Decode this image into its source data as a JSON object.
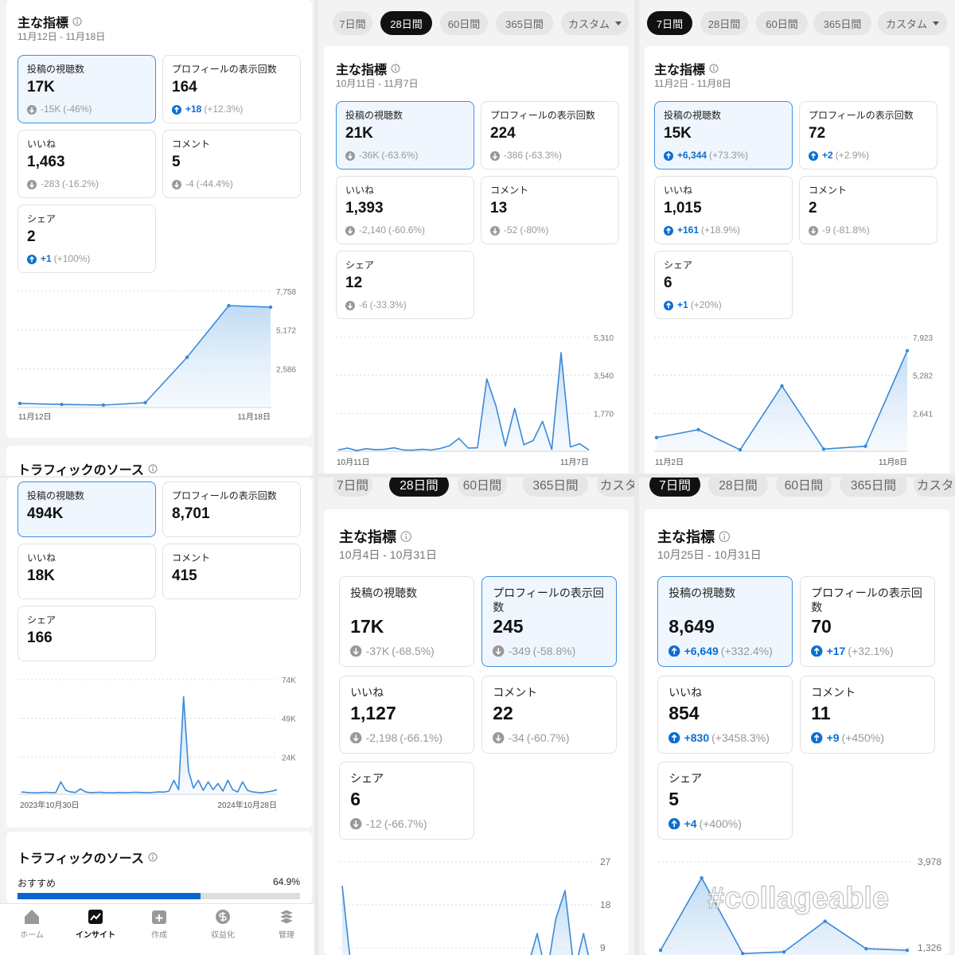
{
  "panels": [
    {
      "title": "主な指標",
      "date_range": "11月12日 - 11月18日",
      "selected_card": 0,
      "cards": [
        {
          "label": "投稿の視聴数",
          "value": "17K",
          "change": "-15K",
          "change_pct": "(-46%)",
          "trend": "down"
        },
        {
          "label": "プロフィールの表示回数",
          "value": "164",
          "change": "+18",
          "change_pct": "(+12.3%)",
          "trend": "up"
        },
        {
          "label": "いいね",
          "value": "1,463",
          "change": "-283",
          "change_pct": "(-16.2%)",
          "trend": "down"
        },
        {
          "label": "コメント",
          "value": "5",
          "change": "-4",
          "change_pct": "(-44.4%)",
          "trend": "down"
        },
        {
          "label": "シェア",
          "value": "2",
          "change": "+1",
          "change_pct": "(+100%)",
          "trend": "up"
        }
      ],
      "chart": {
        "type": "line",
        "values": [
          270,
          200,
          160,
          320,
          3350,
          6800,
          6700
        ],
        "ylim": [
          0,
          7758
        ],
        "yticks": [
          {
            "value": 2586,
            "label": "2,586"
          },
          {
            "value": 5172,
            "label": "5,172"
          },
          {
            "value": 7758,
            "label": "7,758"
          }
        ],
        "x_labels": [
          "11月12日",
          "11月18日"
        ]
      },
      "section_title": "トラフィックのソース"
    },
    {
      "tabs": {
        "items": [
          "7日間",
          "28日間",
          "60日間",
          "365日間",
          "カスタム"
        ],
        "selected": 1
      },
      "title": "主な指標",
      "date_range": "10月11日 - 11月7日",
      "selected_card": 0,
      "cards": [
        {
          "label": "投稿の視聴数",
          "value": "21K",
          "change": "-36K",
          "change_pct": "(-63.6%)",
          "trend": "down"
        },
        {
          "label": "プロフィールの表示回数",
          "value": "224",
          "change": "-386",
          "change_pct": "(-63.3%)",
          "trend": "down"
        },
        {
          "label": "いいね",
          "value": "1,393",
          "change": "-2,140",
          "change_pct": "(-60.6%)",
          "trend": "down"
        },
        {
          "label": "コメント",
          "value": "13",
          "change": "-52",
          "change_pct": "(-80%)",
          "trend": "down"
        },
        {
          "label": "シェア",
          "value": "12",
          "change": "-6",
          "change_pct": "(-33.3%)",
          "trend": "down"
        }
      ],
      "chart": {
        "type": "line",
        "values": [
          60,
          150,
          30,
          120,
          70,
          90,
          160,
          60,
          50,
          90,
          60,
          130,
          260,
          600,
          150,
          160,
          3380,
          2100,
          250,
          2000,
          300,
          500,
          1400,
          80,
          4600,
          200,
          350,
          60
        ],
        "ylim": [
          0,
          5310
        ],
        "yticks": [
          {
            "value": 1770,
            "label": "1,770"
          },
          {
            "value": 3540,
            "label": "3,540"
          },
          {
            "value": 5310,
            "label": "5,310"
          }
        ],
        "x_labels": [
          "10月11日",
          "11月7日"
        ]
      }
    },
    {
      "tabs": {
        "items": [
          "7日間",
          "28日間",
          "60日間",
          "365日間",
          "カスタム"
        ],
        "selected": 0
      },
      "title": "主な指標",
      "date_range": "11月2日 - 11月8日",
      "selected_card": 0,
      "cards": [
        {
          "label": "投稿の視聴数",
          "value": "15K",
          "change": "+6,344",
          "change_pct": "(+73.3%)",
          "trend": "up"
        },
        {
          "label": "プロフィールの表示回数",
          "value": "72",
          "change": "+2",
          "change_pct": "(+2.9%)",
          "trend": "up"
        },
        {
          "label": "いいね",
          "value": "1,015",
          "change": "+161",
          "change_pct": "(+18.9%)",
          "trend": "up"
        },
        {
          "label": "コメント",
          "value": "2",
          "change": "-9",
          "change_pct": "(-81.8%)",
          "trend": "down"
        },
        {
          "label": "シェア",
          "value": "6",
          "change": "+1",
          "change_pct": "(+20%)",
          "trend": "up"
        }
      ],
      "chart": {
        "type": "line",
        "values": [
          950,
          1500,
          100,
          4550,
          150,
          350,
          7000
        ],
        "ylim": [
          0,
          7923
        ],
        "yticks": [
          {
            "value": 2641,
            "label": "2,641"
          },
          {
            "value": 5282,
            "label": "5,282"
          },
          {
            "value": 7923,
            "label": "7,923"
          }
        ],
        "x_labels": [
          "11月2日",
          "11月8日"
        ]
      }
    },
    {
      "selected_card": 0,
      "cards": [
        {
          "label": "投稿の視聴数",
          "value": "494K"
        },
        {
          "label": "プロフィールの表示回数",
          "value": "8,701"
        },
        {
          "label": "いいね",
          "value": "18K"
        },
        {
          "label": "コメント",
          "value": "415"
        },
        {
          "label": "シェア",
          "value": "166"
        }
      ],
      "chart": {
        "type": "line",
        "values": [
          1500,
          1200,
          1000,
          900,
          1100,
          1300,
          1000,
          1200,
          8000,
          2500,
          1500,
          1200,
          3500,
          1500,
          1000,
          1200,
          1300,
          1100,
          1000,
          900,
          1200,
          1000,
          1100,
          1300,
          1200,
          1000,
          1100,
          1300,
          1500,
          1400,
          2000,
          9000,
          3000,
          63000,
          15000,
          4000,
          9000,
          2500,
          8000,
          3000,
          7000,
          2000,
          9000,
          3000,
          1500,
          8000,
          2500,
          1500,
          1200,
          1000,
          1500,
          2000,
          3000
        ],
        "ylim": [
          0,
          74000
        ],
        "yticks": [
          {
            "value": 24000,
            "label": "24K"
          },
          {
            "value": 49000,
            "label": "49K"
          },
          {
            "value": 74000,
            "label": "74K"
          }
        ],
        "x_labels": [
          "2023年10月30日",
          "2024年10月28日"
        ]
      },
      "traffic": {
        "title": "トラフィックのソース",
        "items": [
          {
            "label": "おすすめ",
            "value": 64.9,
            "value_label": "64.9%"
          }
        ]
      },
      "nav": {
        "items": [
          "ホーム",
          "インサイト",
          "作成",
          "収益化",
          "管理"
        ],
        "active": 1
      }
    },
    {
      "tabs": {
        "items": [
          "7日間",
          "28日間",
          "60日間",
          "365日間",
          "カスタム"
        ],
        "selected": 1
      },
      "title": "主な指標",
      "date_range": "10月4日 - 10月31日",
      "selected_card": 1,
      "cards": [
        {
          "label": "投稿の視聴数",
          "value": "17K",
          "change": "-37K",
          "change_pct": "(-68.5%)",
          "trend": "down"
        },
        {
          "label": "プロフィールの表示回数",
          "value": "245",
          "change": "-349",
          "change_pct": "(-58.8%)",
          "trend": "down"
        },
        {
          "label": "いいね",
          "value": "1,127",
          "change": "-2,198",
          "change_pct": "(-66.1%)",
          "trend": "down"
        },
        {
          "label": "コメント",
          "value": "22",
          "change": "-34",
          "change_pct": "(-60.7%)",
          "trend": "down"
        },
        {
          "label": "シェア",
          "value": "6",
          "change": "-12",
          "change_pct": "(-66.7%)",
          "trend": "down"
        }
      ],
      "chart": {
        "type": "line",
        "values": [
          22,
          4,
          3,
          5,
          2,
          3,
          6,
          4,
          3,
          5,
          4,
          3,
          6,
          5,
          4,
          3,
          5,
          7,
          4,
          6,
          5,
          12,
          3,
          15,
          21,
          4,
          12,
          3
        ],
        "ylim": [
          0,
          27
        ],
        "yticks": [
          9,
          18,
          27
        ]
      }
    },
    {
      "tabs": {
        "items": [
          "7日間",
          "28日間",
          "60日間",
          "365日間",
          "カスタム"
        ],
        "selected": 0
      },
      "title": "主な指標",
      "date_range": "10月25日 - 10月31日",
      "selected_card": 0,
      "cards": [
        {
          "label": "投稿の視聴数",
          "value": "8,649",
          "change": "+6,649",
          "change_pct": "(+332.4%)",
          "trend": "up"
        },
        {
          "label": "プロフィールの表示回数",
          "value": "70",
          "change": "+17",
          "change_pct": "(+32.1%)",
          "trend": "up"
        },
        {
          "label": "いいね",
          "value": "854",
          "change": "+830",
          "change_pct": "(+3458.3%)",
          "trend": "up"
        },
        {
          "label": "コメント",
          "value": "11",
          "change": "+9",
          "change_pct": "(+450%)",
          "trend": "up"
        },
        {
          "label": "シェア",
          "value": "5",
          "change": "+4",
          "change_pct": "(+400%)",
          "trend": "up"
        }
      ],
      "chart": {
        "type": "line",
        "values": [
          1250,
          3483,
          1150,
          1200,
          2146,
          1300,
          1250
        ],
        "ylim": [
          0,
          3978
        ],
        "yticks": [
          {
            "value": 1326,
            "label": "1,326"
          },
          {
            "value": 3978,
            "label": "3,978"
          }
        ]
      },
      "watermark": "#collageable"
    }
  ]
}
